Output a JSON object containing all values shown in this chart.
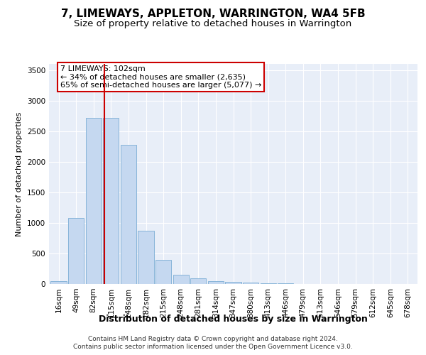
{
  "title1": "7, LIMEWAYS, APPLETON, WARRINGTON, WA4 5FB",
  "title2": "Size of property relative to detached houses in Warrington",
  "xlabel": "Distribution of detached houses by size in Warrington",
  "ylabel": "Number of detached properties",
  "bar_labels": [
    "16sqm",
    "49sqm",
    "82sqm",
    "115sqm",
    "148sqm",
    "182sqm",
    "215sqm",
    "248sqm",
    "281sqm",
    "314sqm",
    "347sqm",
    "380sqm",
    "413sqm",
    "446sqm",
    "479sqm",
    "513sqm",
    "546sqm",
    "579sqm",
    "612sqm",
    "645sqm",
    "678sqm"
  ],
  "bar_values": [
    50,
    1080,
    2720,
    2720,
    2280,
    870,
    390,
    150,
    90,
    50,
    35,
    25,
    15,
    7,
    3,
    2,
    1,
    0,
    0,
    0,
    0
  ],
  "bar_color": "#c5d8f0",
  "bar_edgecolor": "#7aadd4",
  "vline_x": 2.62,
  "vline_color": "#cc0000",
  "annotation_line1": "7 LIMEWAYS: 102sqm",
  "annotation_line2": "← 34% of detached houses are smaller (2,635)",
  "annotation_line3": "65% of semi-detached houses are larger (5,077) →",
  "annotation_box_color": "#ffffff",
  "annotation_box_edgecolor": "#cc0000",
  "ylim": [
    0,
    3600
  ],
  "yticks": [
    0,
    500,
    1000,
    1500,
    2000,
    2500,
    3000,
    3500
  ],
  "plot_bg_color": "#e8eef8",
  "grid_color": "#ffffff",
  "footer1": "Contains HM Land Registry data © Crown copyright and database right 2024.",
  "footer2": "Contains public sector information licensed under the Open Government Licence v3.0.",
  "title1_fontsize": 11,
  "title2_fontsize": 9.5,
  "xlabel_fontsize": 9,
  "ylabel_fontsize": 8,
  "annot_fontsize": 8,
  "tick_fontsize": 7.5,
  "footer_fontsize": 6.5
}
